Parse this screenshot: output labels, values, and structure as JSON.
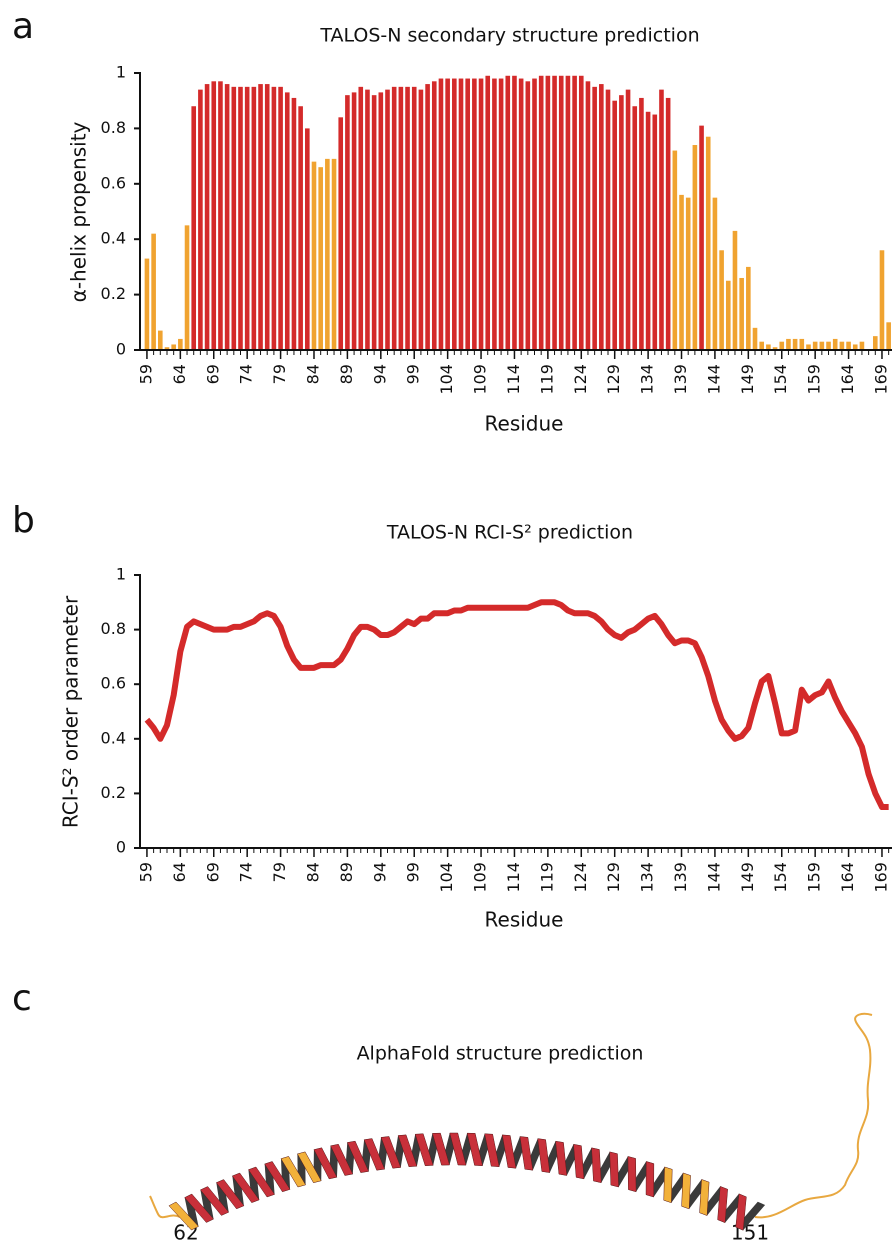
{
  "panels": [
    "a",
    "b",
    "c"
  ],
  "chart_data": [
    {
      "type": "bar",
      "title": "TALOS-N secondary structure prediction",
      "ylabel": "α-helix propensity",
      "xlabel": "Residue",
      "x": [
        59,
        60,
        61,
        62,
        63,
        64,
        65,
        66,
        67,
        68,
        69,
        70,
        71,
        72,
        73,
        74,
        75,
        76,
        77,
        78,
        79,
        80,
        81,
        82,
        83,
        84,
        85,
        86,
        87,
        88,
        89,
        90,
        91,
        92,
        93,
        94,
        95,
        96,
        97,
        98,
        99,
        100,
        101,
        102,
        103,
        104,
        105,
        106,
        107,
        108,
        109,
        110,
        111,
        112,
        113,
        114,
        115,
        116,
        117,
        118,
        119,
        120,
        121,
        122,
        123,
        124,
        125,
        126,
        127,
        128,
        129,
        130,
        131,
        132,
        133,
        134,
        135,
        136,
        137,
        138,
        139,
        140,
        141,
        142,
        143,
        144,
        145,
        146,
        147,
        148,
        149,
        150,
        151,
        152,
        153,
        154,
        155,
        156,
        157,
        158,
        159,
        160,
        161,
        162,
        163,
        164,
        165,
        166,
        167,
        168,
        169,
        170
      ],
      "values": [
        0.33,
        0.42,
        0.07,
        0.01,
        0.02,
        0.04,
        0.45,
        0.88,
        0.94,
        0.96,
        0.97,
        0.97,
        0.96,
        0.95,
        0.95,
        0.95,
        0.95,
        0.96,
        0.96,
        0.95,
        0.95,
        0.93,
        0.91,
        0.88,
        0.8,
        0.68,
        0.66,
        0.69,
        0.69,
        0.84,
        0.92,
        0.93,
        0.95,
        0.94,
        0.92,
        0.93,
        0.94,
        0.95,
        0.95,
        0.95,
        0.95,
        0.94,
        0.96,
        0.97,
        0.98,
        0.98,
        0.98,
        0.98,
        0.98,
        0.98,
        0.98,
        0.99,
        0.98,
        0.98,
        0.99,
        0.99,
        0.98,
        0.97,
        0.98,
        0.99,
        0.99,
        0.99,
        0.99,
        0.99,
        0.99,
        0.99,
        0.97,
        0.95,
        0.96,
        0.94,
        0.9,
        0.92,
        0.94,
        0.88,
        0.91,
        0.86,
        0.85,
        0.94,
        0.91,
        0.72,
        0.56,
        0.55,
        0.74,
        0.81,
        0.77,
        0.55,
        0.36,
        0.25,
        0.43,
        0.26,
        0.3,
        0.08,
        0.03,
        0.02,
        0.01,
        0.03,
        0.04,
        0.04,
        0.04,
        0.02,
        0.03,
        0.03,
        0.03,
        0.04,
        0.03,
        0.03,
        0.02,
        0.03,
        0.0,
        0.05,
        0.36,
        0.1
      ],
      "colors": [
        "#f0a330",
        "#f0a330",
        "#f0a330",
        "#f0a330",
        "#f0a330",
        "#f0a330",
        "#f0a330",
        "#d42a2a",
        "#d42a2a",
        "#d42a2a",
        "#d42a2a",
        "#d42a2a",
        "#d42a2a",
        "#d42a2a",
        "#d42a2a",
        "#d42a2a",
        "#d42a2a",
        "#d42a2a",
        "#d42a2a",
        "#d42a2a",
        "#d42a2a",
        "#d42a2a",
        "#d42a2a",
        "#d42a2a",
        "#d42a2a",
        "#f0a330",
        "#f0a330",
        "#f0a330",
        "#f0a330",
        "#d42a2a",
        "#d42a2a",
        "#d42a2a",
        "#d42a2a",
        "#d42a2a",
        "#d42a2a",
        "#d42a2a",
        "#d42a2a",
        "#d42a2a",
        "#d42a2a",
        "#d42a2a",
        "#d42a2a",
        "#d42a2a",
        "#d42a2a",
        "#d42a2a",
        "#d42a2a",
        "#d42a2a",
        "#d42a2a",
        "#d42a2a",
        "#d42a2a",
        "#d42a2a",
        "#d42a2a",
        "#d42a2a",
        "#d42a2a",
        "#d42a2a",
        "#d42a2a",
        "#d42a2a",
        "#d42a2a",
        "#d42a2a",
        "#d42a2a",
        "#d42a2a",
        "#d42a2a",
        "#d42a2a",
        "#d42a2a",
        "#d42a2a",
        "#d42a2a",
        "#d42a2a",
        "#d42a2a",
        "#d42a2a",
        "#d42a2a",
        "#d42a2a",
        "#d42a2a",
        "#d42a2a",
        "#d42a2a",
        "#d42a2a",
        "#d42a2a",
        "#d42a2a",
        "#d42a2a",
        "#d42a2a",
        "#d42a2a",
        "#f0a330",
        "#f0a330",
        "#f0a330",
        "#f0a330",
        "#d42a2a",
        "#f0a330",
        "#f0a330",
        "#f0a330",
        "#f0a330",
        "#f0a330",
        "#f0a330",
        "#f0a330",
        "#f0a330",
        "#f0a330",
        "#f0a330",
        "#f0a330",
        "#f0a330",
        "#f0a330",
        "#f0a330",
        "#f0a330",
        "#f0a330",
        "#f0a330",
        "#f0a330",
        "#f0a330",
        "#f0a330",
        "#f0a330",
        "#f0a330",
        "#f0a330",
        "#f0a330",
        "#f0a330",
        "#f0a330",
        "#f0a330",
        "#f0a330"
      ],
      "xlim": [
        58.5,
        170.5
      ],
      "xticks": [
        59,
        64,
        69,
        74,
        79,
        84,
        89,
        94,
        99,
        104,
        109,
        114,
        119,
        124,
        129,
        134,
        139,
        144,
        149,
        154,
        159,
        164,
        169
      ],
      "ylim": [
        0,
        1
      ],
      "yticks": [
        0,
        0.2,
        0.4,
        0.6,
        0.8,
        1
      ]
    },
    {
      "type": "line",
      "title": "TALOS-N RCI-S² prediction",
      "ylabel": "RCI-S² order parameter",
      "xlabel": "Residue",
      "color": "#d42a2a",
      "x": [
        59,
        60,
        61,
        62,
        63,
        64,
        65,
        66,
        67,
        68,
        69,
        70,
        71,
        72,
        73,
        74,
        75,
        76,
        77,
        78,
        79,
        80,
        81,
        82,
        83,
        84,
        85,
        86,
        87,
        88,
        89,
        90,
        91,
        92,
        93,
        94,
        95,
        96,
        97,
        98,
        99,
        100,
        101,
        102,
        103,
        104,
        105,
        106,
        107,
        108,
        109,
        110,
        111,
        112,
        113,
        114,
        115,
        116,
        117,
        118,
        119,
        120,
        121,
        122,
        123,
        124,
        125,
        126,
        127,
        128,
        129,
        130,
        131,
        132,
        133,
        134,
        135,
        136,
        137,
        138,
        139,
        140,
        141,
        142,
        143,
        144,
        145,
        146,
        147,
        148,
        149,
        150,
        151,
        152,
        153,
        154,
        155,
        156,
        157,
        158,
        159,
        160,
        161,
        162,
        163,
        164,
        165,
        166,
        167,
        168,
        169,
        170
      ],
      "values": [
        0.47,
        0.44,
        0.4,
        0.45,
        0.56,
        0.72,
        0.81,
        0.83,
        0.82,
        0.81,
        0.8,
        0.8,
        0.8,
        0.81,
        0.81,
        0.82,
        0.83,
        0.85,
        0.86,
        0.85,
        0.81,
        0.74,
        0.69,
        0.66,
        0.66,
        0.66,
        0.67,
        0.67,
        0.67,
        0.69,
        0.73,
        0.78,
        0.81,
        0.81,
        0.8,
        0.78,
        0.78,
        0.79,
        0.81,
        0.83,
        0.82,
        0.84,
        0.84,
        0.86,
        0.86,
        0.86,
        0.87,
        0.87,
        0.88,
        0.88,
        0.88,
        0.88,
        0.88,
        0.88,
        0.88,
        0.88,
        0.88,
        0.88,
        0.89,
        0.9,
        0.9,
        0.9,
        0.89,
        0.87,
        0.86,
        0.86,
        0.86,
        0.85,
        0.83,
        0.8,
        0.78,
        0.77,
        0.79,
        0.8,
        0.82,
        0.84,
        0.85,
        0.82,
        0.78,
        0.75,
        0.76,
        0.76,
        0.75,
        0.7,
        0.63,
        0.54,
        0.47,
        0.43,
        0.4,
        0.41,
        0.44,
        0.53,
        0.61,
        0.63,
        0.53,
        0.42,
        0.42,
        0.43,
        0.58,
        0.54,
        0.56,
        0.57,
        0.61,
        0.55,
        0.5,
        0.46,
        0.42,
        0.37,
        0.27,
        0.2,
        0.15,
        0.15
      ],
      "xlim": [
        58.5,
        170.5
      ],
      "xticks": [
        59,
        64,
        69,
        74,
        79,
        84,
        89,
        94,
        99,
        104,
        109,
        114,
        119,
        124,
        129,
        134,
        139,
        144,
        149,
        154,
        159,
        164,
        169
      ],
      "ylim": [
        0,
        1
      ],
      "yticks": [
        0,
        0.2,
        0.4,
        0.6,
        0.8,
        1
      ]
    }
  ],
  "structure": {
    "title": "AlphaFold structure prediction",
    "start_label": "62",
    "end_label": "151"
  }
}
